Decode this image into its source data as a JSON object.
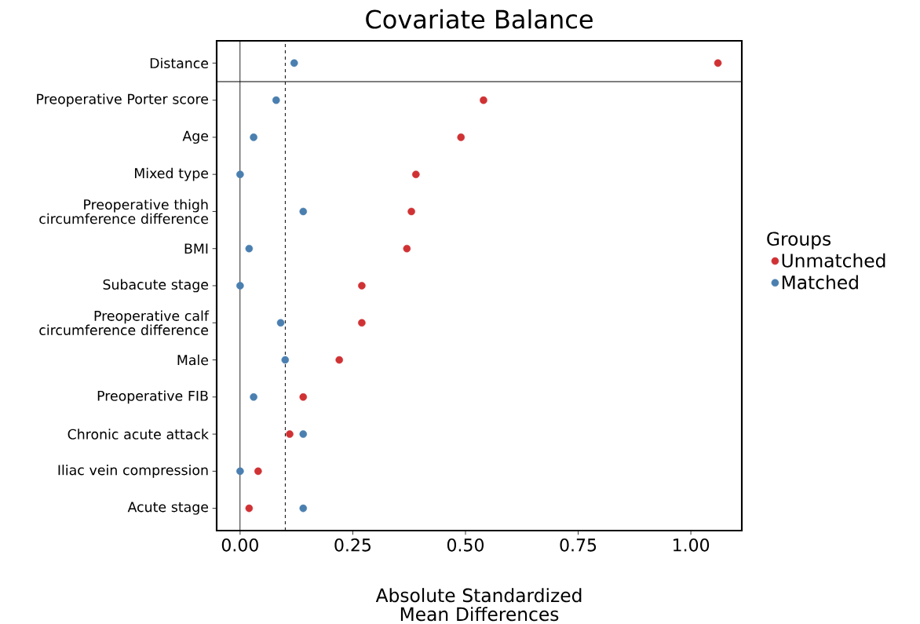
{
  "chart_data": {
    "type": "scatter",
    "title": "Covariate Balance",
    "xlabel": "Absolute Standardized Mean Differences",
    "legend_title": "Groups",
    "categories": [
      "Distance",
      "Preoperative Porter score",
      "Age",
      "Mixed type",
      "Preoperative thigh circumference difference",
      "BMI",
      "Subacute stage",
      "Preoperative calf circumference difference",
      "Male",
      "Preoperative FIB",
      "Chronic acute attack",
      "Iliac vein compression",
      "Acute stage"
    ],
    "series": [
      {
        "name": "Unmatched",
        "color": "#d03234",
        "values": [
          1.06,
          0.54,
          0.49,
          0.39,
          0.38,
          0.37,
          0.27,
          0.27,
          0.22,
          0.14,
          0.11,
          0.04,
          0.02
        ]
      },
      {
        "name": "Matched",
        "color": "#4a7fb0",
        "values": [
          0.12,
          0.08,
          0.03,
          0.0,
          0.14,
          0.02,
          0.0,
          0.09,
          0.1,
          0.03,
          0.14,
          0.0,
          0.14
        ]
      }
    ],
    "xlim": [
      -0.052,
      1.113
    ],
    "xticks": [
      {
        "value": 0,
        "label": "0.00"
      },
      {
        "value": 0.25,
        "label": "0.25"
      },
      {
        "value": 0.5,
        "label": "0.50"
      },
      {
        "value": 0.75,
        "label": "0.75"
      },
      {
        "value": 1,
        "label": "1.00"
      }
    ],
    "ref_lines": [
      {
        "axis": "x",
        "value": 0,
        "line_style": "solid"
      },
      {
        "axis": "x",
        "value": 0.1,
        "line_style": "dashed"
      }
    ],
    "marker": "circle",
    "orientation": "horizontal",
    "legend": "right",
    "grid": false
  }
}
